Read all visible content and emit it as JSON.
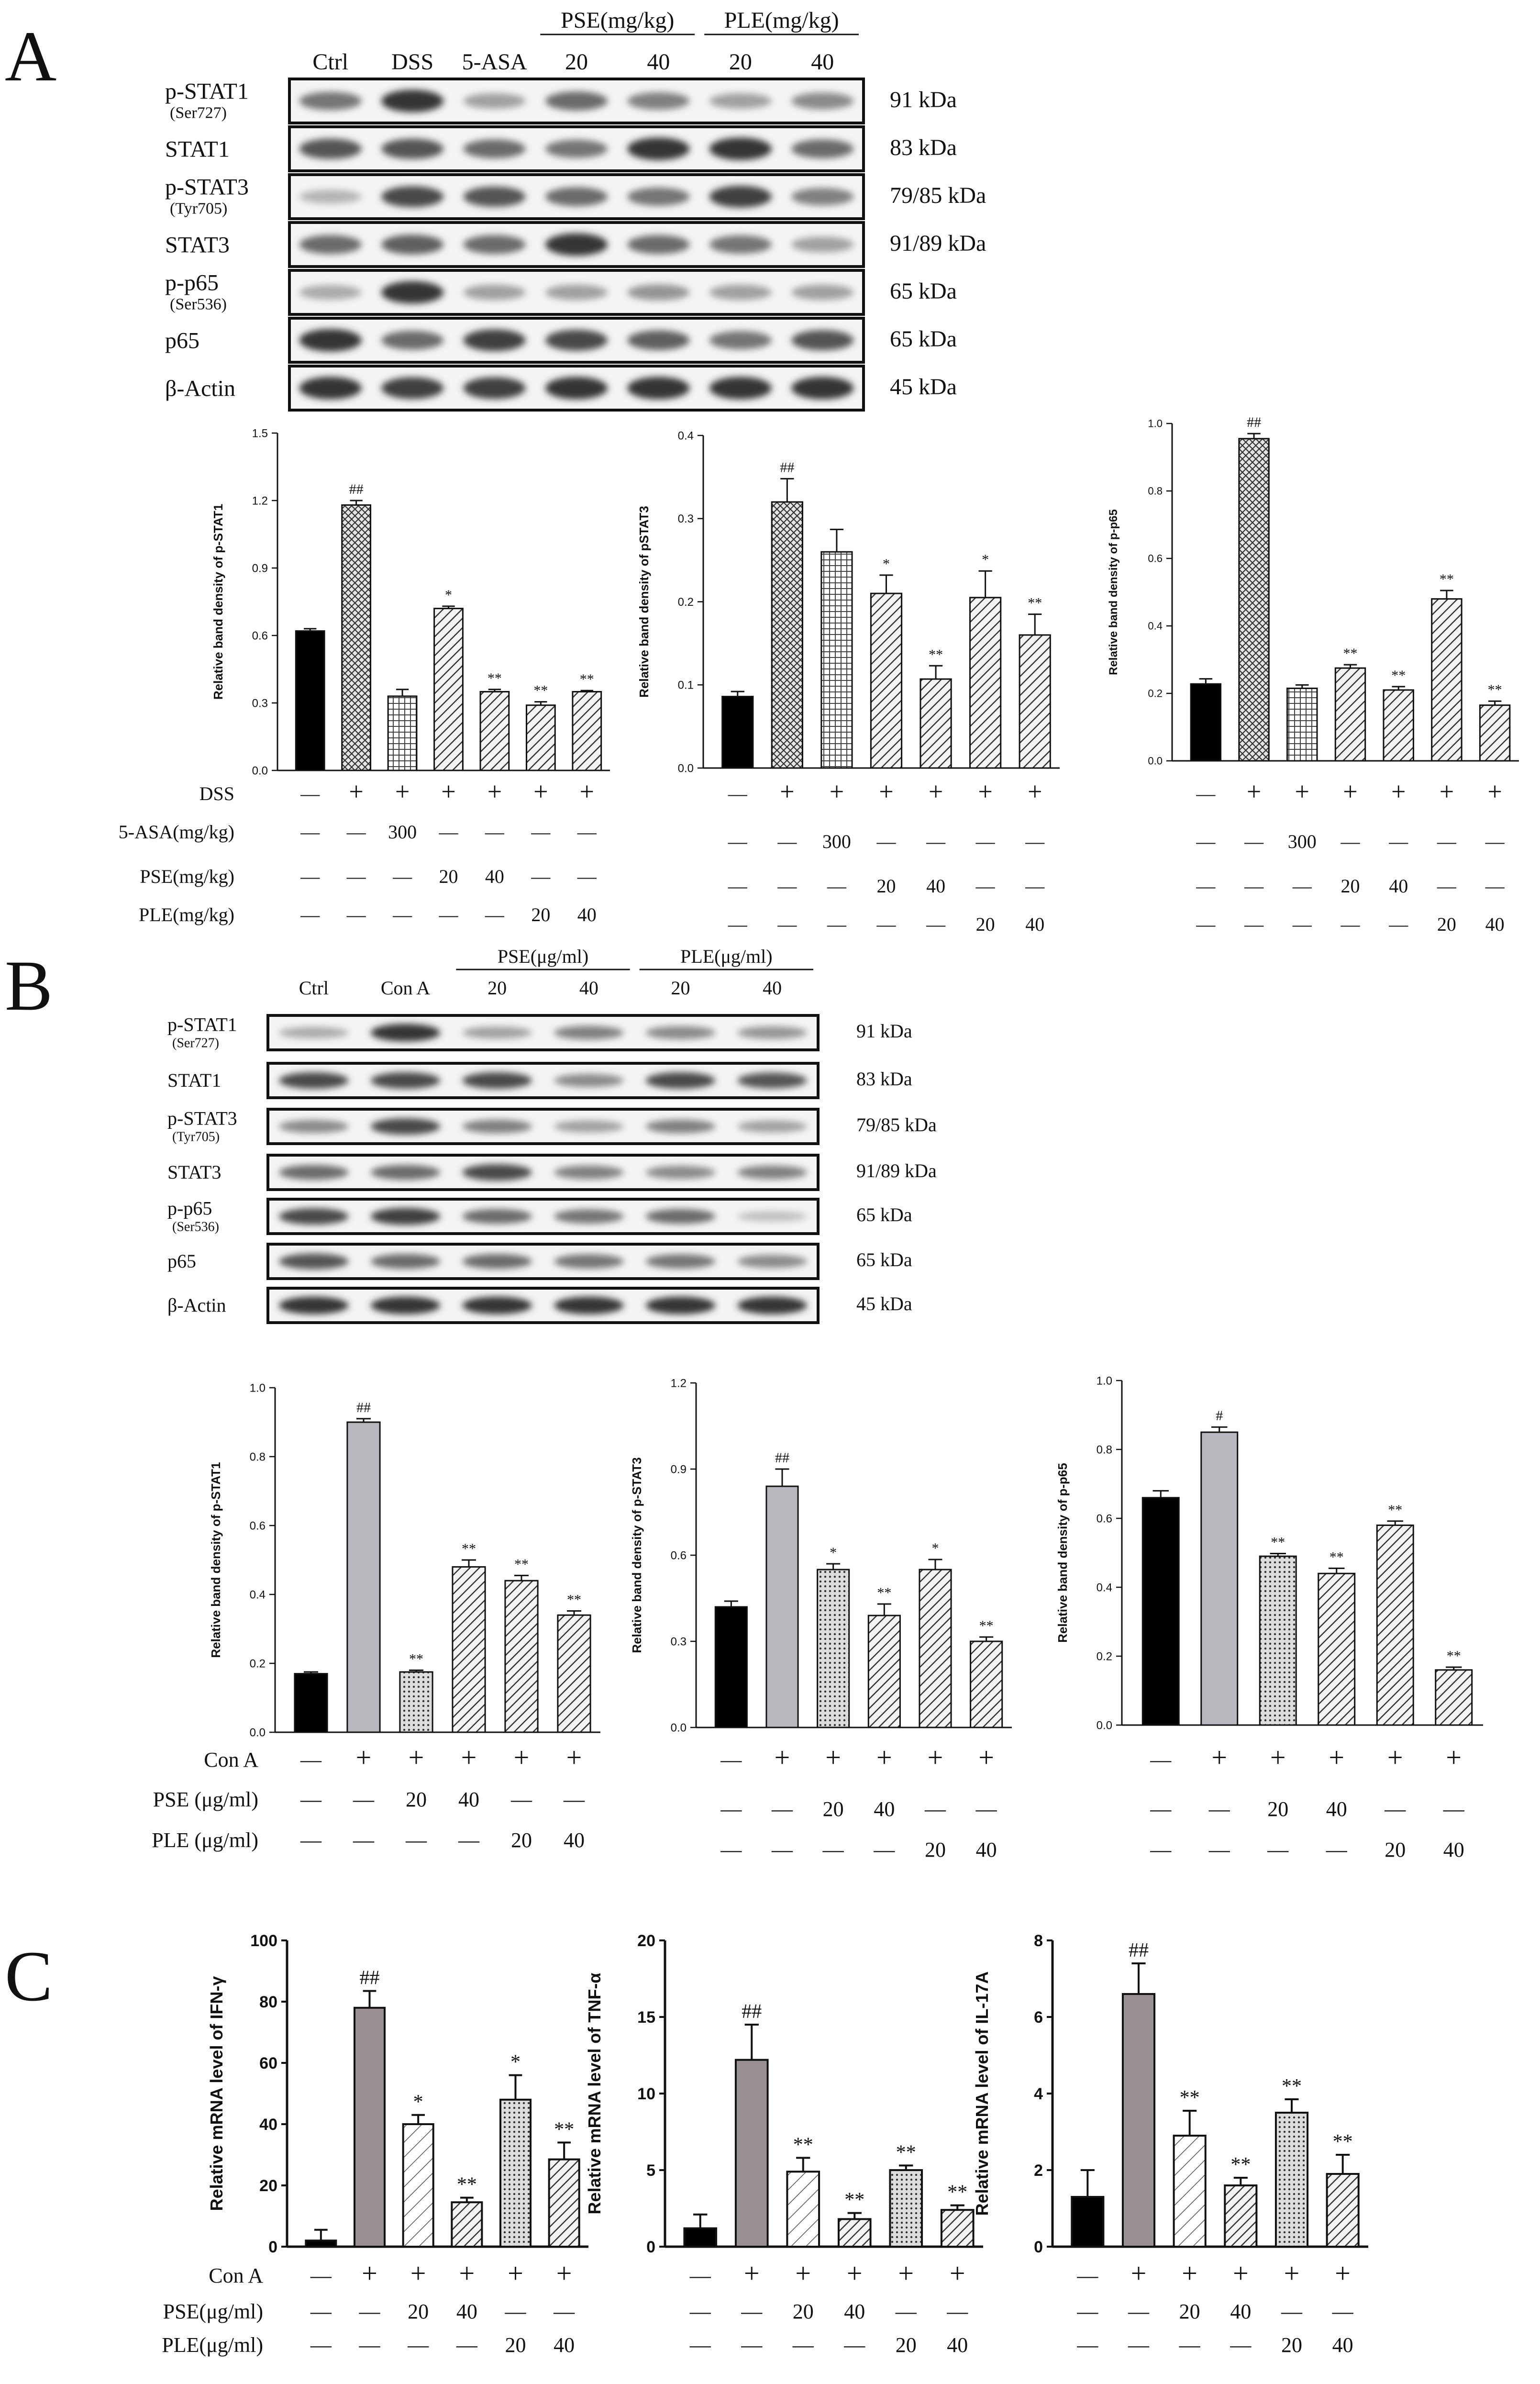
{
  "panels": {
    "A": {
      "letter": "A",
      "blot": {
        "header": {
          "lanes": [
            "Ctrl",
            "DSS",
            "5-ASA",
            "20",
            "40",
            "20",
            "40"
          ],
          "groups": [
            {
              "label": "PSE(mg/kg)",
              "span": [
                3,
                4
              ]
            },
            {
              "label": "PLE(mg/kg)",
              "span": [
                5,
                6
              ]
            }
          ]
        },
        "rows": [
          {
            "name": "p-STAT1",
            "sub": "(Ser727)",
            "kda": "91 kDa",
            "intensity": [
              0.55,
              0.85,
              0.35,
              0.6,
              0.5,
              0.35,
              0.45
            ]
          },
          {
            "name": "STAT1",
            "sub": "",
            "kda": "83 kDa",
            "intensity": [
              0.7,
              0.7,
              0.6,
              0.55,
              0.85,
              0.85,
              0.6
            ]
          },
          {
            "name": "p-STAT3",
            "sub": "(Tyr705)",
            "kda": "79/85 kDa",
            "intensity": [
              0.25,
              0.75,
              0.7,
              0.6,
              0.55,
              0.8,
              0.5
            ]
          },
          {
            "name": "STAT3",
            "sub": "",
            "kda": "91/89 kDa",
            "intensity": [
              0.6,
              0.65,
              0.6,
              0.85,
              0.6,
              0.55,
              0.35
            ]
          },
          {
            "name": "p-p65",
            "sub": "(Ser536)",
            "kda": "65 kDa",
            "intensity": [
              0.3,
              0.85,
              0.35,
              0.35,
              0.4,
              0.35,
              0.35
            ]
          },
          {
            "name": "p65",
            "sub": "",
            "kda": "65 kDa",
            "intensity": [
              0.85,
              0.6,
              0.8,
              0.75,
              0.65,
              0.55,
              0.7
            ]
          },
          {
            "name": "β-Actin",
            "sub": "",
            "kda": "45 kDa",
            "intensity": [
              0.85,
              0.8,
              0.8,
              0.85,
              0.85,
              0.85,
              0.85
            ]
          }
        ]
      },
      "table_rows": [
        {
          "label": "DSS",
          "cells": [
            "—",
            "+",
            "+",
            "+",
            "+",
            "+",
            "+"
          ]
        },
        {
          "label": "5-ASA(mg/kg)",
          "cells": [
            "—",
            "—",
            "300",
            "—",
            "—",
            "—",
            "—"
          ]
        },
        {
          "label": "PSE(mg/kg)",
          "cells": [
            "—",
            "—",
            "—",
            "20",
            "40",
            "—",
            "—"
          ]
        },
        {
          "label": "PLE(mg/kg)",
          "cells": [
            "—",
            "—",
            "—",
            "—",
            "—",
            "20",
            "40"
          ]
        }
      ]
    },
    "B": {
      "letter": "B",
      "blot": {
        "header": {
          "lanes": [
            "Ctrl",
            "Con A",
            "20",
            "40",
            "20",
            "40"
          ],
          "groups": [
            {
              "label": "PSE(μg/ml)",
              "span": [
                2,
                3
              ]
            },
            {
              "label": "PLE(μg/ml)",
              "span": [
                4,
                5
              ]
            }
          ]
        },
        "rows": [
          {
            "name": "p-STAT1",
            "sub": "(Ser727)",
            "kda": "91 kDa",
            "intensity": [
              0.3,
              0.85,
              0.35,
              0.5,
              0.45,
              0.4
            ]
          },
          {
            "name": "STAT1",
            "sub": "",
            "kda": "83 kDa",
            "intensity": [
              0.75,
              0.75,
              0.75,
              0.45,
              0.75,
              0.7
            ]
          },
          {
            "name": "p-STAT3",
            "sub": "(Tyr705)",
            "kda": "79/85 kDa",
            "intensity": [
              0.45,
              0.75,
              0.5,
              0.35,
              0.5,
              0.35
            ]
          },
          {
            "name": "STAT3",
            "sub": "",
            "kda": "91/89 kDa",
            "intensity": [
              0.6,
              0.6,
              0.75,
              0.5,
              0.45,
              0.5
            ]
          },
          {
            "name": "p-p65",
            "sub": "(Ser536)",
            "kda": "65 kDa",
            "intensity": [
              0.75,
              0.8,
              0.6,
              0.55,
              0.6,
              0.2
            ]
          },
          {
            "name": "p65",
            "sub": "",
            "kda": "65 kDa",
            "intensity": [
              0.7,
              0.6,
              0.6,
              0.55,
              0.55,
              0.45
            ]
          },
          {
            "name": "β-Actin",
            "sub": "",
            "kda": "45 kDa",
            "intensity": [
              0.85,
              0.85,
              0.85,
              0.85,
              0.85,
              0.85
            ]
          }
        ]
      },
      "table_rows": [
        {
          "label": "Con A",
          "cells": [
            "—",
            "+",
            "+",
            "+",
            "+",
            "+"
          ]
        },
        {
          "label": "PSE (μg/ml)",
          "cells": [
            "—",
            "—",
            "20",
            "40",
            "—",
            "—"
          ]
        },
        {
          "label": "PLE (μg/ml)",
          "cells": [
            "—",
            "—",
            "—",
            "—",
            "20",
            "40"
          ]
        }
      ]
    },
    "C": {
      "letter": "C",
      "table_rows": [
        {
          "label": "Con A",
          "cells": [
            "—",
            "+",
            "+",
            "+",
            "+",
            "+"
          ]
        },
        {
          "label": "PSE(μg/ml)",
          "cells": [
            "—",
            "—",
            "20",
            "40",
            "—",
            "—"
          ]
        },
        {
          "label": "PLE(μg/ml)",
          "cells": [
            "—",
            "—",
            "—",
            "—",
            "20",
            "40"
          ]
        }
      ]
    }
  },
  "chart_data": [
    {
      "id": "A1",
      "type": "bar",
      "ylabel": "Relative band density of p-STAT1",
      "ylim": [
        0,
        1.5
      ],
      "ticks": [
        "0.0",
        "0.3",
        "0.6",
        "0.9",
        "1.2",
        "1.5"
      ],
      "values": [
        0.62,
        1.18,
        0.33,
        0.72,
        0.35,
        0.29,
        0.35
      ],
      "errors": [
        0.01,
        0.02,
        0.03,
        0.01,
        0.01,
        0.015,
        0.005
      ],
      "sig": [
        "",
        "##",
        "",
        "*",
        "**",
        "**",
        "**"
      ],
      "patterns": [
        "solid",
        "cross",
        "grid",
        "diag",
        "diag",
        "diag",
        "diag"
      ]
    },
    {
      "id": "A2",
      "type": "bar",
      "ylabel": "Relative band density of pSTAT3",
      "ylim": [
        0,
        0.4
      ],
      "ticks": [
        "0.0",
        "0.1",
        "0.2",
        "0.3",
        "0.4"
      ],
      "values": [
        0.086,
        0.32,
        0.26,
        0.21,
        0.107,
        0.205,
        0.16
      ],
      "errors": [
        0.006,
        0.028,
        0.027,
        0.022,
        0.016,
        0.032,
        0.025
      ],
      "sig": [
        "",
        "##",
        "",
        "*",
        "**",
        "*",
        "**"
      ],
      "patterns": [
        "solid",
        "cross",
        "grid",
        "diag",
        "diag",
        "diag",
        "diag"
      ]
    },
    {
      "id": "A3",
      "type": "bar",
      "ylabel": "Relative band density of p-p65",
      "ylim": [
        0,
        1.0
      ],
      "ticks": [
        "0.0",
        "0.2",
        "0.4",
        "0.6",
        "0.8",
        "1.0"
      ],
      "values": [
        0.228,
        0.955,
        0.215,
        0.275,
        0.21,
        0.48,
        0.165
      ],
      "errors": [
        0.015,
        0.015,
        0.01,
        0.01,
        0.01,
        0.025,
        0.012
      ],
      "sig": [
        "",
        "##",
        "",
        "**",
        "**",
        "**",
        "**"
      ],
      "patterns": [
        "solid",
        "cross",
        "grid",
        "diag",
        "diag",
        "diag",
        "diag"
      ]
    },
    {
      "id": "B1",
      "type": "bar",
      "ylabel": "Relative band density of p-STAT1",
      "ylim": [
        0,
        1.0
      ],
      "ticks": [
        "0.0",
        "0.2",
        "0.4",
        "0.6",
        "0.8",
        "1.0"
      ],
      "values": [
        0.17,
        0.9,
        0.175,
        0.48,
        0.44,
        0.34
      ],
      "errors": [
        0.005,
        0.01,
        0.005,
        0.02,
        0.015,
        0.012
      ],
      "sig": [
        "",
        "##",
        "**",
        "**",
        "**",
        "**"
      ],
      "patterns": [
        "solid",
        "gray",
        "dots",
        "diag",
        "diag",
        "diag"
      ]
    },
    {
      "id": "B2",
      "type": "bar",
      "ylabel": "Relative band density of p-STAT3",
      "ylim": [
        0,
        1.2
      ],
      "ticks": [
        "0.0",
        "0.3",
        "0.6",
        "0.9",
        "1.2"
      ],
      "values": [
        0.42,
        0.84,
        0.55,
        0.39,
        0.55,
        0.3
      ],
      "errors": [
        0.02,
        0.06,
        0.02,
        0.04,
        0.035,
        0.015
      ],
      "sig": [
        "",
        "##",
        "*",
        "**",
        "*",
        "**"
      ],
      "patterns": [
        "solid",
        "gray",
        "dots",
        "diag",
        "diag",
        "diag"
      ]
    },
    {
      "id": "B3",
      "type": "bar",
      "ylabel": "Relative band density of p-p65",
      "ylim": [
        0,
        1.0
      ],
      "ticks": [
        "0.0",
        "0.2",
        "0.4",
        "0.6",
        "0.8",
        "1.0"
      ],
      "values": [
        0.66,
        0.85,
        0.49,
        0.44,
        0.58,
        0.16
      ],
      "errors": [
        0.02,
        0.015,
        0.008,
        0.015,
        0.012,
        0.008
      ],
      "sig": [
        "",
        "#",
        "**",
        "**",
        "**",
        "**"
      ],
      "patterns": [
        "solid",
        "gray",
        "dots",
        "diag",
        "diag",
        "diag"
      ]
    },
    {
      "id": "C1",
      "type": "bar",
      "ylabel": "Relative mRNA level of IFN-γ",
      "ylim": [
        0,
        100
      ],
      "ticks": [
        "0",
        "20",
        "40",
        "60",
        "80",
        "100"
      ],
      "values": [
        2,
        78,
        40,
        14.5,
        48,
        28.5
      ],
      "errors": [
        3.5,
        5.5,
        3,
        1.5,
        8,
        5.5
      ],
      "sig": [
        "",
        "##",
        "*",
        "**",
        "*",
        "**"
      ],
      "patterns": [
        "solid",
        "darkgray",
        "sparse",
        "diag",
        "dots",
        "diag"
      ]
    },
    {
      "id": "C2",
      "type": "bar",
      "ylabel": "Relative mRNA level of TNF-α",
      "ylim": [
        0,
        20
      ],
      "ticks": [
        "0",
        "5",
        "10",
        "15",
        "20"
      ],
      "values": [
        1.2,
        12.2,
        4.9,
        1.8,
        5.0,
        2.4
      ],
      "errors": [
        0.9,
        2.3,
        0.9,
        0.4,
        0.3,
        0.3
      ],
      "sig": [
        "",
        "##",
        "**",
        "**",
        "**",
        "**"
      ],
      "patterns": [
        "solid",
        "darkgray",
        "sparse",
        "diag",
        "dots",
        "diag"
      ]
    },
    {
      "id": "C3",
      "type": "bar",
      "ylabel": "Relative mRNA level of IL-17A",
      "ylim": [
        0,
        8
      ],
      "ticks": [
        "0",
        "2",
        "4",
        "6",
        "8"
      ],
      "values": [
        1.3,
        6.6,
        2.9,
        1.6,
        3.5,
        1.9
      ],
      "errors": [
        0.7,
        0.8,
        0.65,
        0.2,
        0.35,
        0.5
      ],
      "sig": [
        "",
        "##",
        "**",
        "**",
        "**",
        "**"
      ],
      "patterns": [
        "solid",
        "darkgray",
        "sparse",
        "diag",
        "dots",
        "diag"
      ]
    }
  ]
}
